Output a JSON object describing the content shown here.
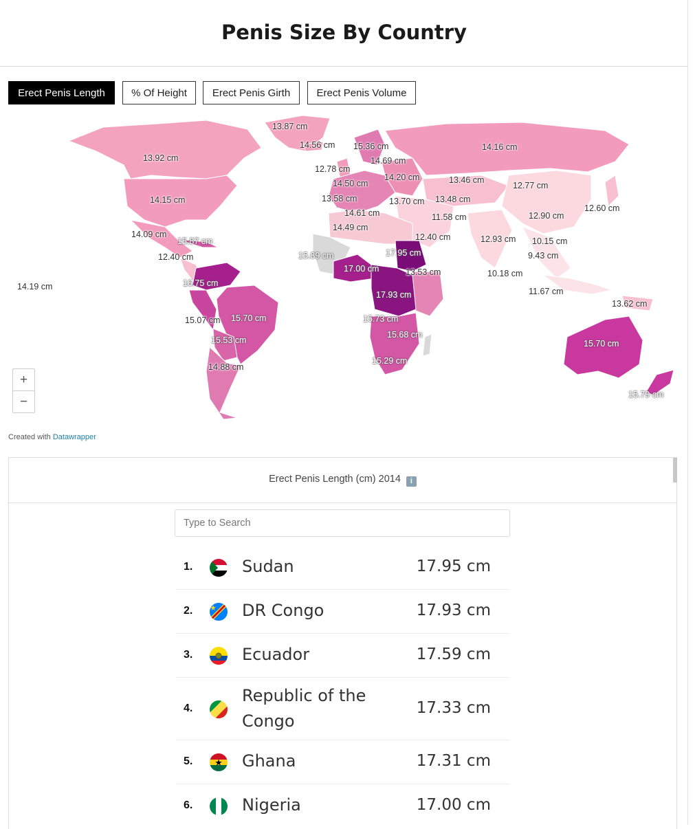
{
  "page": {
    "title": "Penis Size By Country"
  },
  "tabs": [
    {
      "label": "Erect Penis Length",
      "active": true
    },
    {
      "label": "% Of Height",
      "active": false
    },
    {
      "label": "Erect Penis Girth",
      "active": false
    },
    {
      "label": "Erect Penis Volume",
      "active": false
    }
  ],
  "map": {
    "labels": [
      "13.87 cm",
      "14.56 cm",
      "15.36 cm",
      "14.16 cm",
      "13.92 cm",
      "12.78 cm",
      "14.69 cm",
      "14.50 cm",
      "14.20 cm",
      "13.46 cm",
      "12.77 cm",
      "14.15 cm",
      "13.58 cm",
      "13.70 cm",
      "13.48 cm",
      "12.60 cm",
      "14.61 cm",
      "11.58 cm",
      "12.90 cm",
      "14.49 cm",
      "14.09 cm",
      "15.87 cm",
      "12.40 cm",
      "12.93 cm",
      "10.15 cm",
      "12.40 cm",
      "15.89 cm",
      "17.95 cm",
      "9.43 cm",
      "17.00 cm",
      "13.53 cm",
      "10.18 cm",
      "14.19 cm",
      "16.75 cm",
      "17.93 cm",
      "11.67 cm",
      "13.62 cm",
      "15.07 cm",
      "15.70 cm",
      "15.73 cm",
      "15.68 cm",
      "15.70 cm",
      "15.53 cm",
      "15.29 cm",
      "14.88 cm",
      "15.79 cm"
    ],
    "zoom_in": "+",
    "zoom_out": "−"
  },
  "credit": {
    "prefix": "Created with",
    "link": "Datawrapper"
  },
  "table": {
    "title": "Erect Penis Length (cm) 2014",
    "info_icon": "i",
    "search_placeholder": "Type to Search",
    "rows": [
      {
        "rank": "1.",
        "country": "Sudan",
        "value": "17.95 cm",
        "flag": "sudan-flag-icon"
      },
      {
        "rank": "2.",
        "country": "DR Congo",
        "value": "17.93 cm",
        "flag": "dr-congo-flag-icon"
      },
      {
        "rank": "3.",
        "country": "Ecuador",
        "value": "17.59 cm",
        "flag": "ecuador-flag-icon"
      },
      {
        "rank": "4.",
        "country": "Republic of the Congo",
        "value": "17.33 cm",
        "flag": "congo-flag-icon"
      },
      {
        "rank": "5.",
        "country": "Ghana",
        "value": "17.31 cm",
        "flag": "ghana-flag-icon"
      },
      {
        "rank": "6.",
        "country": "Nigeria",
        "value": "17.00 cm",
        "flag": "nigeria-flag-icon"
      }
    ]
  },
  "colors": {
    "light": "#f6c9d3",
    "mid": "#ec8fb3",
    "strong": "#d457a6",
    "deep": "#a5208d",
    "darkest": "#7a0c78",
    "nodata": "#d9d9d9"
  }
}
